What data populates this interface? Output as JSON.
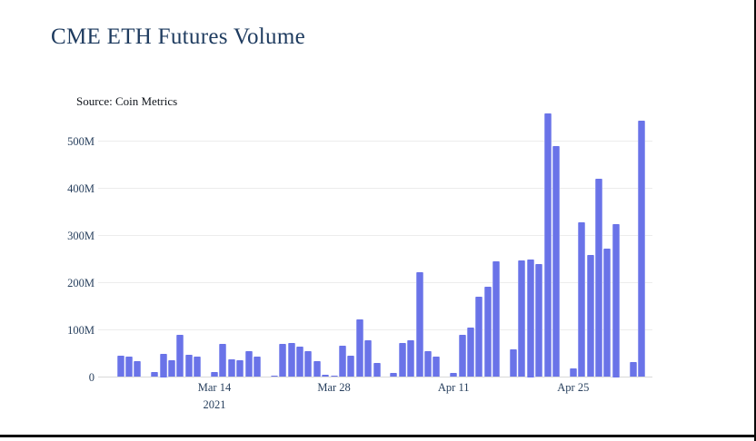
{
  "title": "CME ETH Futures Volume",
  "source_note": "Source: Coin Metrics",
  "colors": {
    "title_text": "#1e3b5f",
    "axis_text": "#28405e",
    "bar_fill": "#6a73e8",
    "bar_edge": "#9098ef",
    "gridline": "#ececec",
    "zero_line": "#d9d9d9",
    "frame_border": "#0a0a0a",
    "background": "#ffffff"
  },
  "chart_data": {
    "type": "bar",
    "title": "CME ETH Futures Volume",
    "subtitle": "Source: Coin Metrics",
    "unit": "M",
    "grid": true,
    "y_axis": {
      "ticks": [
        "0",
        "100M",
        "200M",
        "300M",
        "400M",
        "500M"
      ],
      "tick_values_m": [
        0,
        100,
        200,
        300,
        400,
        500
      ],
      "range_m": [
        0,
        560
      ]
    },
    "x_axis": {
      "ticks": [
        {
          "label": "Mar 14",
          "sublabel": "2021",
          "date": "2021-03-14"
        },
        {
          "label": "Mar 28",
          "sublabel": "",
          "date": "2021-03-28"
        },
        {
          "label": "Apr 11",
          "sublabel": "",
          "date": "2021-04-11"
        },
        {
          "label": "Apr 25",
          "sublabel": "",
          "date": "2021-04-25"
        }
      ]
    },
    "points": [
      [
        "2021-03-03",
        46
      ],
      [
        "2021-03-04",
        44
      ],
      [
        "2021-03-05",
        33
      ],
      [
        "2021-03-07",
        11
      ],
      [
        "2021-03-08",
        50
      ],
      [
        "2021-03-09",
        36
      ],
      [
        "2021-03-10",
        89
      ],
      [
        "2021-03-11",
        48
      ],
      [
        "2021-03-12",
        44
      ],
      [
        "2021-03-14",
        11
      ],
      [
        "2021-03-15",
        70
      ],
      [
        "2021-03-16",
        37
      ],
      [
        "2021-03-17",
        36
      ],
      [
        "2021-03-18",
        55
      ],
      [
        "2021-03-19",
        44
      ],
      [
        "2021-03-21",
        3
      ],
      [
        "2021-03-22",
        71
      ],
      [
        "2021-03-23",
        73
      ],
      [
        "2021-03-24",
        65
      ],
      [
        "2021-03-25",
        54
      ],
      [
        "2021-03-26",
        33
      ],
      [
        "2021-03-27",
        4
      ],
      [
        "2021-03-28",
        3
      ],
      [
        "2021-03-29",
        67
      ],
      [
        "2021-03-30",
        46
      ],
      [
        "2021-03-31",
        123
      ],
      [
        "2021-04-01",
        78
      ],
      [
        "2021-04-02",
        30
      ],
      [
        "2021-04-04",
        8
      ],
      [
        "2021-04-05",
        73
      ],
      [
        "2021-04-06",
        78
      ],
      [
        "2021-04-07",
        222
      ],
      [
        "2021-04-08",
        55
      ],
      [
        "2021-04-09",
        44
      ],
      [
        "2021-04-11",
        8
      ],
      [
        "2021-04-12",
        90
      ],
      [
        "2021-04-13",
        105
      ],
      [
        "2021-04-14",
        170
      ],
      [
        "2021-04-15",
        192
      ],
      [
        "2021-04-16",
        245
      ],
      [
        "2021-04-18",
        58
      ],
      [
        "2021-04-19",
        248
      ],
      [
        "2021-04-20",
        250
      ],
      [
        "2021-04-21",
        240
      ],
      [
        "2021-04-22",
        558
      ],
      [
        "2021-04-23",
        490
      ],
      [
        "2021-04-25",
        19
      ],
      [
        "2021-04-26",
        327
      ],
      [
        "2021-04-27",
        258
      ],
      [
        "2021-04-28",
        421
      ],
      [
        "2021-04-29",
        273
      ],
      [
        "2021-04-30",
        325
      ],
      [
        "2021-05-02",
        32
      ],
      [
        "2021-05-03",
        544
      ]
    ]
  }
}
